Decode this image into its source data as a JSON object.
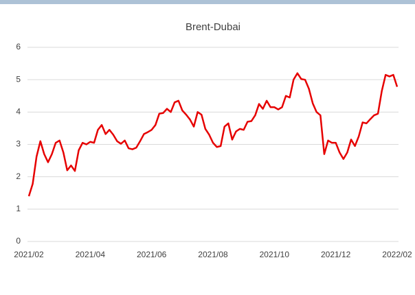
{
  "chart_data": {
    "type": "line",
    "title": "Brent-Dubai",
    "categories": [
      "2021/02",
      null,
      null,
      null,
      null,
      null,
      null,
      null,
      null,
      null,
      null,
      null,
      null,
      null,
      null,
      null,
      "2021/04",
      null,
      null,
      null,
      null,
      null,
      null,
      null,
      null,
      null,
      null,
      null,
      null,
      null,
      null,
      null,
      "2021/06",
      null,
      null,
      null,
      null,
      null,
      null,
      null,
      null,
      null,
      null,
      null,
      null,
      null,
      null,
      null,
      "2021/08",
      null,
      null,
      null,
      null,
      null,
      null,
      null,
      null,
      null,
      null,
      null,
      null,
      null,
      null,
      null,
      "2021/10",
      null,
      null,
      null,
      null,
      null,
      null,
      null,
      null,
      null,
      null,
      null,
      null,
      null,
      null,
      null,
      "2021/12",
      null,
      null,
      null,
      null,
      null,
      null,
      null,
      null,
      null,
      null,
      null,
      null,
      null,
      null,
      null,
      "2022/02"
    ],
    "values": [
      1.4,
      1.78,
      2.62,
      3.1,
      2.7,
      2.45,
      2.7,
      3.05,
      3.12,
      2.75,
      2.2,
      2.35,
      2.18,
      2.82,
      3.05,
      3.0,
      3.08,
      3.05,
      3.45,
      3.6,
      3.32,
      3.45,
      3.3,
      3.1,
      3.02,
      3.12,
      2.88,
      2.85,
      2.9,
      3.1,
      3.32,
      3.38,
      3.45,
      3.6,
      3.95,
      3.97,
      4.1,
      4.0,
      4.3,
      4.35,
      4.05,
      3.92,
      3.77,
      3.55,
      4.0,
      3.92,
      3.48,
      3.3,
      3.05,
      2.92,
      2.95,
      3.55,
      3.65,
      3.15,
      3.4,
      3.48,
      3.45,
      3.7,
      3.72,
      3.9,
      4.25,
      4.1,
      4.35,
      4.15,
      4.15,
      4.08,
      4.15,
      4.5,
      4.45,
      5.0,
      5.2,
      5.02,
      5.0,
      4.72,
      4.27,
      4.0,
      3.9,
      2.7,
      3.12,
      3.05,
      3.05,
      2.75,
      2.55,
      2.75,
      3.15,
      2.95,
      3.25,
      3.68,
      3.65,
      3.78,
      3.9,
      3.95,
      4.65,
      5.15,
      5.1,
      5.15,
      4.78
    ],
    "color": "#e60000",
    "ylim": [
      0,
      6
    ],
    "yticks": [
      0,
      1,
      2,
      3,
      4,
      5,
      6
    ],
    "grid": true
  }
}
